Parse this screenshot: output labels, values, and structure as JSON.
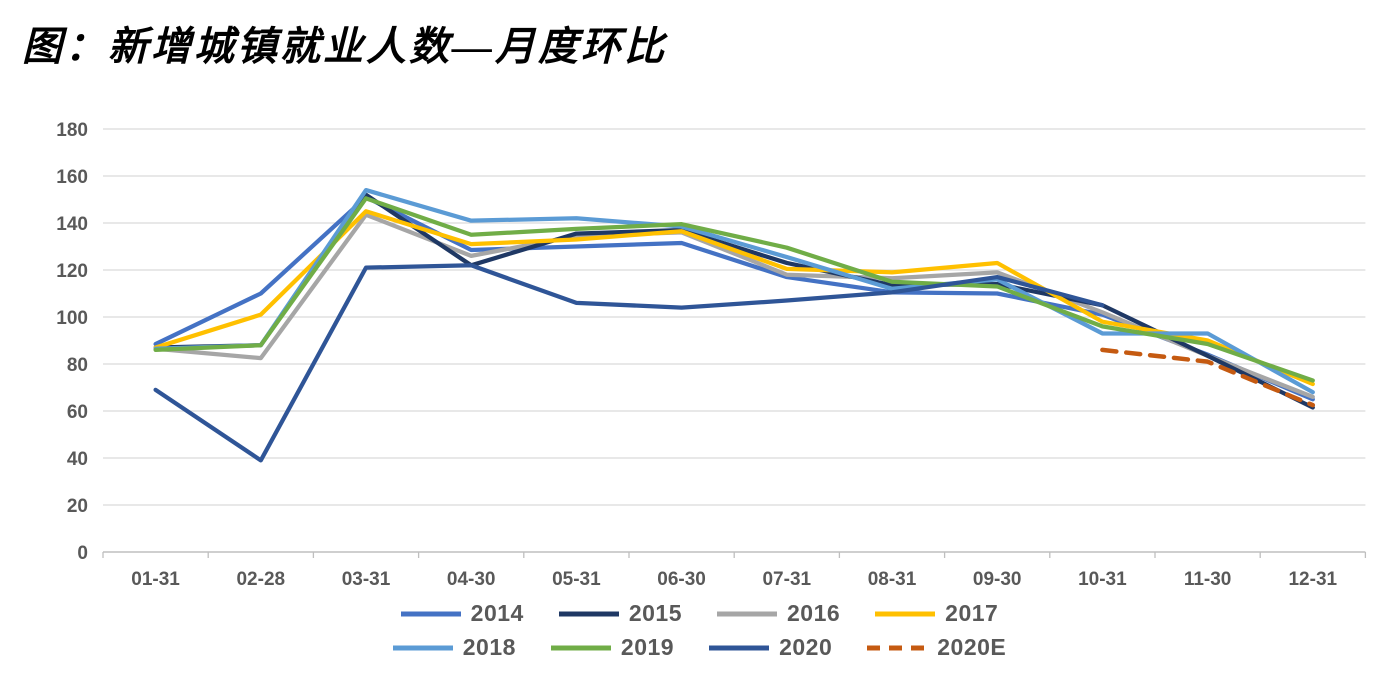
{
  "title": "图：新增城镇就业人数—月度环比",
  "chart_data": {
    "type": "line",
    "title": "图：新增城镇就业人数—月度环比",
    "xlabel": "",
    "ylabel": "",
    "ylim": [
      0,
      180
    ],
    "y_ticks": [
      0,
      20,
      40,
      60,
      80,
      100,
      120,
      140,
      160,
      180
    ],
    "grid": "horizontal",
    "legend_position": "bottom",
    "categories": [
      "01-31",
      "02-28",
      "03-31",
      "04-30",
      "05-31",
      "06-30",
      "07-31",
      "08-31",
      "09-30",
      "10-31",
      "11-30",
      "12-31"
    ],
    "series": [
      {
        "name": "2014",
        "color": "#4472C4",
        "dash": false,
        "values": [
          88.5,
          110,
          151,
          128.5,
          130,
          131.5,
          117,
          110.5,
          110,
          101,
          84,
          65
        ]
      },
      {
        "name": "2015",
        "color": "#1F3864",
        "dash": false,
        "values": [
          87,
          88,
          152,
          122,
          135.5,
          137,
          123,
          113.5,
          114,
          105,
          83.5,
          61.5
        ]
      },
      {
        "name": "2016",
        "color": "#A6A6A6",
        "dash": false,
        "values": [
          86.5,
          82.5,
          143.5,
          126,
          134.5,
          136,
          118,
          116.5,
          119,
          102,
          83.5,
          66
        ]
      },
      {
        "name": "2017",
        "color": "#FFC000",
        "dash": false,
        "values": [
          87,
          101,
          145,
          131,
          133,
          136.5,
          120.5,
          119,
          123,
          98,
          90,
          71.5
        ]
      },
      {
        "name": "2018",
        "color": "#5B9BD5",
        "dash": false,
        "values": [
          86.5,
          88,
          154,
          141,
          142,
          138.5,
          125.5,
          112,
          116,
          93,
          93,
          68
        ]
      },
      {
        "name": "2019",
        "color": "#70AD47",
        "dash": false,
        "values": [
          86,
          88,
          150.5,
          135,
          137.5,
          139.5,
          129.5,
          115,
          113,
          96,
          88.5,
          73
        ]
      },
      {
        "name": "2020",
        "color": "#2F5597",
        "dash": false,
        "values": [
          69,
          39,
          121,
          122,
          106,
          104,
          107,
          110.5,
          117,
          105,
          null,
          null
        ]
      },
      {
        "name": "2020E",
        "color": "#C55A11",
        "dash": true,
        "values": [
          null,
          null,
          null,
          null,
          null,
          null,
          null,
          null,
          null,
          86,
          81,
          62.5
        ]
      }
    ],
    "legend_rows": [
      [
        "2014",
        "2015",
        "2016",
        "2017"
      ],
      [
        "2018",
        "2019",
        "2020",
        "2020E"
      ]
    ]
  },
  "axis_style": {
    "label_color": "#595959",
    "grid_color": "#D9D9D9",
    "axis_color": "#BFBFBF"
  }
}
